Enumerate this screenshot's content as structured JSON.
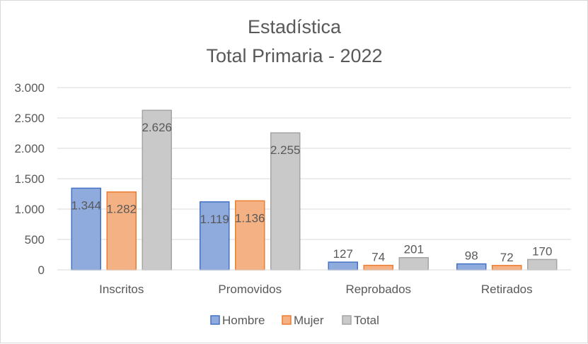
{
  "chart_data": {
    "type": "bar",
    "title": [
      "Estadística",
      "Total Primaria - 2022"
    ],
    "categories": [
      "Inscritos",
      "Promovidos",
      "Reprobados",
      "Retirados"
    ],
    "series": [
      {
        "name": "Hombre",
        "values": [
          1344,
          1119,
          127,
          98
        ],
        "labels": [
          "1.344",
          "1.119",
          "127",
          "98"
        ],
        "fill": "#8faadc",
        "stroke": "#4472c4"
      },
      {
        "name": "Mujer",
        "values": [
          1282,
          1136,
          74,
          72
        ],
        "labels": [
          "1.282",
          "1.136",
          "74",
          "72"
        ],
        "fill": "#f4b183",
        "stroke": "#ed7d31"
      },
      {
        "name": "Total",
        "values": [
          2626,
          2255,
          201,
          170
        ],
        "labels": [
          "2.626",
          "2.255",
          "201",
          "170"
        ],
        "fill": "#c9c9c9",
        "stroke": "#a5a5a5"
      }
    ],
    "ylim": [
      0,
      3000
    ],
    "yticks": [
      0,
      500,
      1000,
      1500,
      2000,
      2500,
      3000
    ],
    "ytick_labels": [
      "0",
      "500",
      "1.000",
      "1.500",
      "2.000",
      "2.500",
      "3.000"
    ],
    "grid": true,
    "legend": "bottom"
  }
}
